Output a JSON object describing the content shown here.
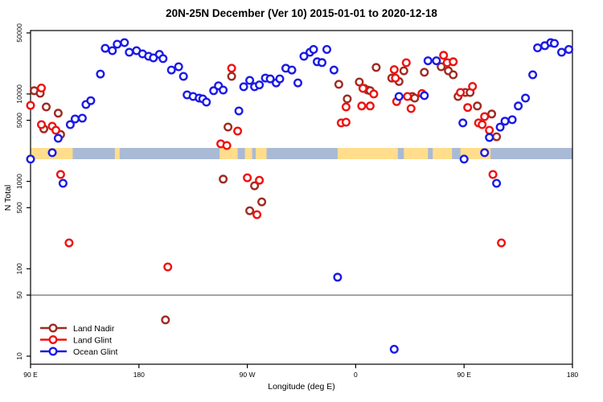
{
  "title": "20N-25N December (Ver 10)   2015-01-01 to 2020-12-18",
  "chart_data": {
    "type": "scatter",
    "title": "20N-25N December (Ver 10)   2015-01-01 to 2020-12-18",
    "xlabel": "Longitude (deg E)",
    "ylabel": "N Total",
    "x_axis": {
      "note": "longitude increases eastward starting at 90E, wrapping through 180, 90W, 0, 90E to 180",
      "tick_values": [
        90,
        180,
        270,
        360,
        450,
        540
      ],
      "tick_labels": [
        "90 E",
        "180",
        "90 W",
        "0",
        "90 E",
        "180"
      ],
      "range": [
        90,
        540
      ]
    },
    "y_axis": {
      "scale": "log10",
      "tick_values": [
        10,
        50,
        100,
        500,
        1000,
        5000,
        10000,
        50000
      ],
      "tick_labels": [
        "10",
        "50",
        "100",
        "500",
        "1000",
        "5000",
        "10000",
        "50000"
      ],
      "range": [
        10,
        50000
      ]
    },
    "reference_line_y": 50,
    "map_band": {
      "description": "20N-25N latitude strip world map drawn across the plot near N=2000",
      "land_color": "#FFDD8C",
      "ocean_color": "#A9BAD6",
      "land_segments_lon": [
        [
          90,
          125
        ],
        [
          160,
          164
        ],
        [
          247,
          262
        ],
        [
          268,
          274
        ],
        [
          277,
          286
        ],
        [
          345,
          395
        ],
        [
          400,
          420
        ],
        [
          424,
          440
        ],
        [
          447,
          472
        ]
      ]
    },
    "legend": {
      "position": "bottom-left",
      "entries": [
        "Land Nadir",
        "Land Glint",
        "Ocean Glint"
      ]
    },
    "series": [
      {
        "name": "Land Nadir",
        "color": "#9E2B21",
        "points": [
          [
            93,
            10900
          ],
          [
            98,
            10200
          ],
          [
            101,
            3990
          ],
          [
            103,
            7110
          ],
          [
            113,
            6030
          ],
          [
            115,
            3440
          ],
          [
            202,
            26
          ],
          [
            250,
            1060
          ],
          [
            254,
            4190
          ],
          [
            257,
            15900
          ],
          [
            272,
            462
          ],
          [
            276,
            890
          ],
          [
            282,
            583
          ],
          [
            346,
            12900
          ],
          [
            353,
            8790
          ],
          [
            363,
            13700
          ],
          [
            367,
            11600
          ],
          [
            370,
            11100
          ],
          [
            372,
            10900
          ],
          [
            377,
            20100
          ],
          [
            390,
            15200
          ],
          [
            396,
            13900
          ],
          [
            400,
            18400
          ],
          [
            407,
            9370
          ],
          [
            409,
            8980
          ],
          [
            417,
            17700
          ],
          [
            431,
            20500
          ],
          [
            437,
            18400
          ],
          [
            441,
            16600
          ],
          [
            445,
            9370
          ],
          [
            451,
            10400
          ],
          [
            455,
            10400
          ],
          [
            461,
            7300
          ],
          [
            473,
            5900
          ],
          [
            477,
            3240
          ]
        ]
      },
      {
        "name": "Land Glint",
        "color": "#EE1111",
        "points": [
          [
            90,
            7400
          ],
          [
            99,
            11700
          ],
          [
            99,
            4460
          ],
          [
            108,
            4280
          ],
          [
            111,
            3850
          ],
          [
            115,
            1200
          ],
          [
            122,
            198
          ],
          [
            204,
            105
          ],
          [
            248,
            2690
          ],
          [
            253,
            2570
          ],
          [
            257,
            19700
          ],
          [
            262,
            3770
          ],
          [
            270,
            1100
          ],
          [
            278,
            416
          ],
          [
            280,
            1030
          ],
          [
            348,
            4660
          ],
          [
            352,
            4750
          ],
          [
            352,
            7110
          ],
          [
            365,
            7300
          ],
          [
            366,
            11600
          ],
          [
            372,
            7300
          ],
          [
            375,
            10000
          ],
          [
            392,
            19000
          ],
          [
            393,
            15200
          ],
          [
            394,
            8190
          ],
          [
            402,
            22800
          ],
          [
            403,
            9370
          ],
          [
            406,
            6810
          ],
          [
            415,
            10100
          ],
          [
            433,
            27700
          ],
          [
            436,
            22800
          ],
          [
            441,
            23400
          ],
          [
            447,
            10400
          ],
          [
            453,
            7000
          ],
          [
            457,
            12200
          ],
          [
            462,
            4660
          ],
          [
            465,
            4460
          ],
          [
            467,
            5520
          ],
          [
            471,
            3850
          ],
          [
            474,
            1200
          ],
          [
            481,
            198
          ]
        ]
      },
      {
        "name": "Ocean Glint",
        "color": "#1A1AE6",
        "points": [
          [
            90,
            1800
          ],
          [
            108,
            2130
          ],
          [
            113,
            3110
          ],
          [
            117,
            950
          ],
          [
            123,
            4460
          ],
          [
            127,
            5180
          ],
          [
            133,
            5280
          ],
          [
            136,
            7580
          ],
          [
            140,
            8380
          ],
          [
            148,
            16900
          ],
          [
            152,
            33300
          ],
          [
            158,
            31300
          ],
          [
            162,
            37100
          ],
          [
            168,
            38700
          ],
          [
            172,
            30000
          ],
          [
            178,
            31300
          ],
          [
            183,
            28800
          ],
          [
            188,
            27000
          ],
          [
            192,
            25900
          ],
          [
            197,
            28400
          ],
          [
            200,
            25400
          ],
          [
            207,
            18800
          ],
          [
            213,
            20500
          ],
          [
            217,
            15900
          ],
          [
            220,
            9770
          ],
          [
            225,
            9370
          ],
          [
            230,
            8980
          ],
          [
            233,
            8790
          ],
          [
            236,
            8070
          ],
          [
            242,
            10900
          ],
          [
            246,
            12400
          ],
          [
            250,
            11100
          ],
          [
            263,
            6390
          ],
          [
            267,
            12100
          ],
          [
            272,
            14300
          ],
          [
            276,
            12100
          ],
          [
            280,
            12700
          ],
          [
            285,
            15200
          ],
          [
            289,
            14900
          ],
          [
            294,
            13400
          ],
          [
            297,
            14900
          ],
          [
            302,
            19700
          ],
          [
            307,
            18800
          ],
          [
            312,
            13400
          ],
          [
            317,
            27000
          ],
          [
            322,
            30000
          ],
          [
            325,
            32300
          ],
          [
            328,
            23400
          ],
          [
            332,
            22900
          ],
          [
            336,
            32300
          ],
          [
            342,
            18800
          ],
          [
            345,
            80
          ],
          [
            392,
            12
          ],
          [
            396,
            9370
          ],
          [
            417,
            9580
          ],
          [
            420,
            24000
          ],
          [
            427,
            24000
          ],
          [
            449,
            4660
          ],
          [
            450,
            1800
          ],
          [
            467,
            2130
          ],
          [
            471,
            3180
          ],
          [
            477,
            950
          ],
          [
            480,
            4180
          ],
          [
            484,
            4890
          ],
          [
            490,
            5080
          ],
          [
            495,
            7300
          ],
          [
            501,
            8980
          ],
          [
            507,
            16600
          ],
          [
            511,
            33700
          ],
          [
            517,
            35700
          ],
          [
            522,
            38700
          ],
          [
            525,
            37900
          ],
          [
            531,
            30000
          ],
          [
            537,
            32300
          ]
        ]
      }
    ]
  }
}
